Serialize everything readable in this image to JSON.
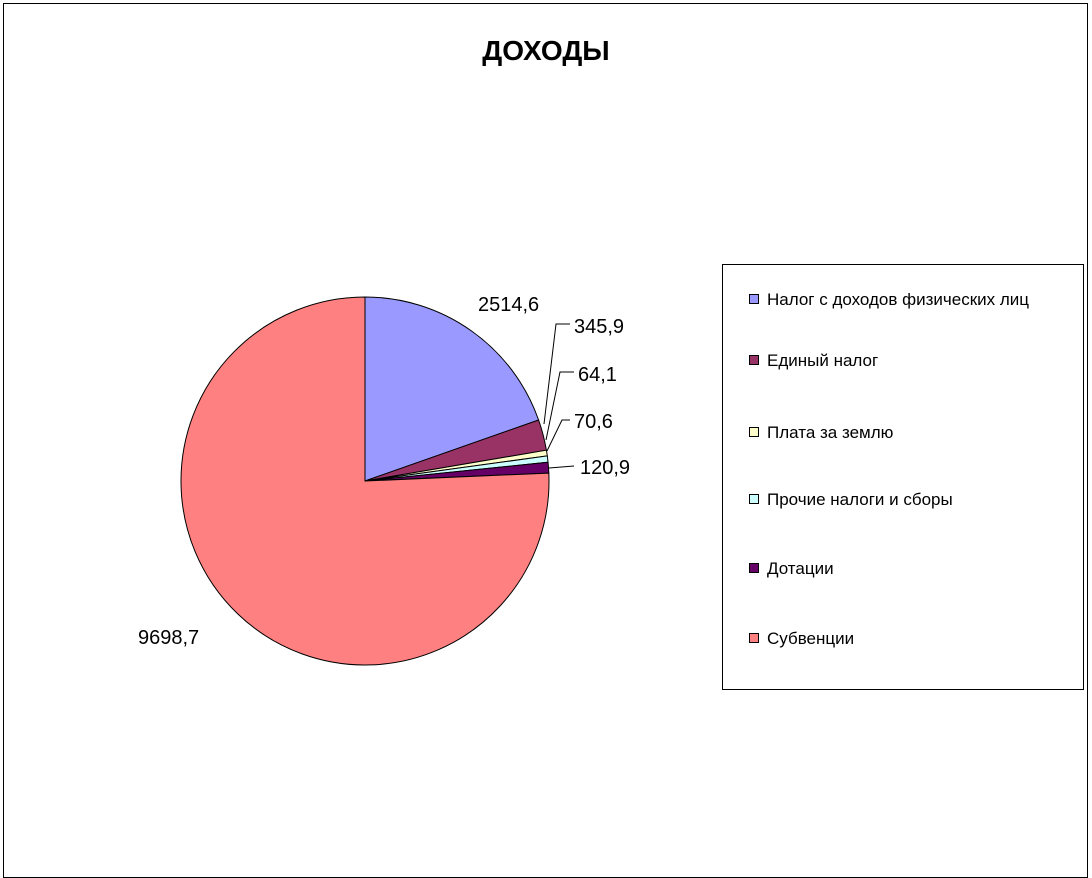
{
  "chart_data": {
    "type": "pie",
    "title": "ДОХОДЫ",
    "slices": [
      {
        "name": "Налог с доходов физических лиц",
        "value": 2514.6,
        "label": "2514,6",
        "color": "#9999ff"
      },
      {
        "name": "Единый налог",
        "value": 345.9,
        "label": "345,9",
        "color": "#993366"
      },
      {
        "name": "Плата за землю",
        "value": 64.1,
        "label": "64,1",
        "color": "#ffffcc"
      },
      {
        "name": "Прочие налоги и сборы",
        "value": 70.6,
        "label": "70,6",
        "color": "#ccffff"
      },
      {
        "name": "Дотации",
        "value": 120.9,
        "label": "120,9",
        "color": "#660066"
      },
      {
        "name": "Субвенции",
        "value": 9698.7,
        "label": "9698,7",
        "color": "#ff8080"
      }
    ],
    "start_angle": "12 o'clock",
    "direction": "clockwise",
    "legend_position": "right"
  }
}
